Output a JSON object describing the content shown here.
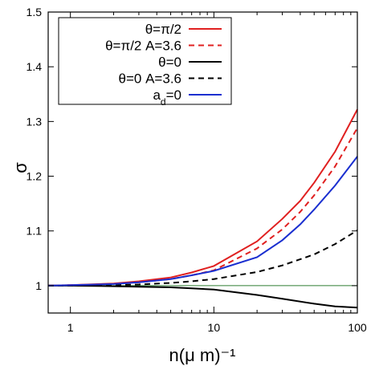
{
  "chart_data": {
    "type": "line",
    "title": "",
    "xlabel": "n(μ m)⁻¹",
    "ylabel": "σ",
    "x_scale": "log",
    "xlim": [
      0.7,
      100
    ],
    "ylim": [
      0.95,
      1.5
    ],
    "x_ticks": [
      1,
      10,
      100
    ],
    "x_tick_labels": [
      "1",
      "10",
      "100"
    ],
    "y_ticks": [
      1,
      1.1,
      1.2,
      1.3,
      1.4,
      1.5
    ],
    "y_tick_labels": [
      "1",
      "1.1",
      "1.2",
      "1.3",
      "1.4",
      "1.5"
    ],
    "grid": false,
    "legend_position": "top-left",
    "reference_line": {
      "y": 1,
      "color": "#2e7d32"
    },
    "series": [
      {
        "name": "θ=π/2",
        "color": "#e02020",
        "dash": "solid",
        "x": [
          0.7,
          1,
          2,
          3,
          5,
          7,
          10,
          20,
          30,
          40,
          50,
          70,
          100
        ],
        "y": [
          1.0,
          1.001,
          1.004,
          1.008,
          1.015,
          1.024,
          1.036,
          1.081,
          1.122,
          1.155,
          1.188,
          1.245,
          1.322
        ]
      },
      {
        "name": "θ=π/2 A=3.6",
        "color": "#e02020",
        "dash": "dashed",
        "x": [
          0.7,
          1,
          2,
          3,
          5,
          7,
          10,
          20,
          30,
          40,
          50,
          70,
          100
        ],
        "y": [
          1.0,
          1.001,
          1.003,
          1.006,
          1.012,
          1.019,
          1.028,
          1.068,
          1.103,
          1.135,
          1.165,
          1.218,
          1.288
        ]
      },
      {
        "name": "θ=0",
        "color": "#000000",
        "dash": "solid",
        "x": [
          0.7,
          1,
          2,
          3,
          5,
          7,
          10,
          20,
          30,
          50,
          70,
          100
        ],
        "y": [
          1.0,
          1.0,
          0.999,
          0.998,
          0.997,
          0.995,
          0.993,
          0.983,
          0.976,
          0.967,
          0.962,
          0.96
        ]
      },
      {
        "name": "θ=0 A=3.6",
        "color": "#000000",
        "dash": "dashed",
        "x": [
          0.7,
          1,
          2,
          3,
          5,
          7,
          10,
          20,
          30,
          50,
          70,
          100
        ],
        "y": [
          1.0,
          1.0,
          1.001,
          1.002,
          1.005,
          1.008,
          1.012,
          1.025,
          1.037,
          1.057,
          1.076,
          1.101
        ]
      },
      {
        "name": "a_d=0",
        "color": "#1a2fd0",
        "dash": "solid",
        "x": [
          0.7,
          1,
          2,
          3,
          5,
          7,
          10,
          20,
          30,
          40,
          50,
          70,
          100
        ],
        "y": [
          1.0,
          1.001,
          1.003,
          1.006,
          1.012,
          1.019,
          1.027,
          1.052,
          1.083,
          1.112,
          1.139,
          1.183,
          1.236
        ]
      }
    ]
  }
}
